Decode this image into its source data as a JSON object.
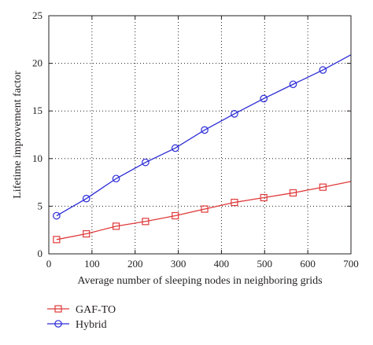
{
  "chart_data": {
    "type": "line",
    "xlabel": "Average number of sleeping nodes in neighboring grids",
    "ylabel": "Lifetime improvement factor",
    "xlim": [
      0,
      700
    ],
    "ylim": [
      0,
      25
    ],
    "xticks": [
      0,
      100,
      200,
      300,
      400,
      500,
      600,
      700
    ],
    "yticks": [
      0,
      5,
      10,
      15,
      20,
      25
    ],
    "grid": true,
    "grid_style": "dotted",
    "legend_position": "bottom-left, below plot",
    "series": [
      {
        "name": "GAF-TO",
        "color": "#e03a3a",
        "marker": "square",
        "x": [
          18,
          87,
          156,
          224,
          293,
          361,
          430,
          498,
          566,
          635
        ],
        "y": [
          1.5,
          2.1,
          2.9,
          3.4,
          4.0,
          4.7,
          5.4,
          5.9,
          6.4,
          7.0
        ],
        "line_end": {
          "x": 700,
          "y": 7.6
        }
      },
      {
        "name": "Hybrid",
        "color": "#2b2bd6",
        "marker": "circle",
        "x": [
          18,
          87,
          156,
          224,
          293,
          361,
          430,
          498,
          566,
          635
        ],
        "y": [
          4.0,
          5.8,
          7.9,
          9.6,
          11.1,
          13.0,
          14.7,
          16.3,
          17.8,
          19.3
        ],
        "line_end": {
          "x": 700,
          "y": 20.9
        }
      }
    ]
  }
}
